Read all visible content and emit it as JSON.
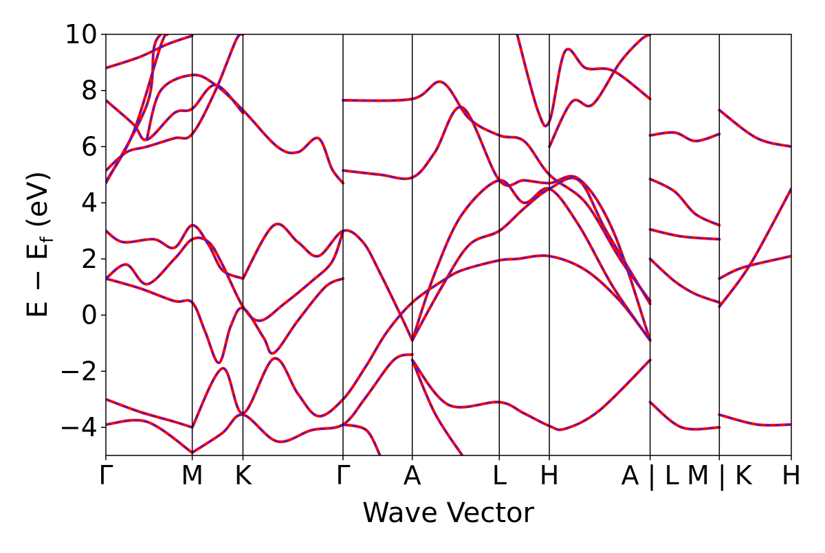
{
  "chart_data": {
    "type": "line",
    "title": "",
    "xlabel": "Wave Vector",
    "ylabel": "E − E_f (eV)",
    "ylabel_parts": {
      "main": "E − E",
      "sub": "f",
      "unit": " (eV)"
    },
    "ylim": [
      -5,
      10
    ],
    "yticks": [
      -4,
      -2,
      0,
      2,
      4,
      6,
      8,
      10
    ],
    "ytick_labels": [
      "−4",
      "−2",
      "0",
      "2",
      "4",
      "6",
      "8",
      "10"
    ],
    "grid": false,
    "legend": "none",
    "xlim": [
      0,
      10
    ],
    "kpath_ticks": [
      {
        "label": "Γ",
        "x": 0
      },
      {
        "label": "M",
        "x": 1.26
      },
      {
        "label": "K",
        "x": 2.0
      },
      {
        "label": "Γ",
        "x": 3.46
      },
      {
        "label": "A",
        "x": 4.47
      },
      {
        "label": "L",
        "x": 5.74
      },
      {
        "label": "H",
        "x": 6.47
      },
      {
        "label": "A | L",
        "x": 7.94
      },
      {
        "label": "M | K",
        "x": 8.95
      },
      {
        "label": "H",
        "x": 10.0
      }
    ],
    "series": [
      {
        "style": {
          "color": "#ff0000",
          "width": 4,
          "dash": "none"
        },
        "bands": [
          [
            [
              0,
              8.8
            ],
            [
              0.5,
              9.2
            ],
            [
              0.9,
              9.65
            ],
            [
              1.26,
              9.95
            ]
          ],
          [
            [
              0,
              7.65
            ],
            [
              0.4,
              6.8
            ],
            [
              0.6,
              6.25
            ],
            [
              1.0,
              7.2
            ],
            [
              1.26,
              7.35
            ],
            [
              1.6,
              8.2
            ],
            [
              2.0,
              7.2
            ]
          ],
          [
            [
              0,
              5.15
            ],
            [
              0.3,
              5.8
            ],
            [
              0.6,
              6.0
            ],
            [
              1.0,
              6.3
            ],
            [
              1.26,
              6.45
            ],
            [
              1.6,
              8.0
            ],
            [
              1.9,
              9.8
            ],
            [
              2.0,
              10.0
            ]
          ],
          [
            [
              0,
              4.75
            ],
            [
              0.4,
              6.5
            ],
            [
              0.8,
              9.6
            ],
            [
              0.9,
              10.0
            ]
          ],
          [
            [
              0,
              4.7
            ],
            [
              0.6,
              7.5
            ],
            [
              0.7,
              9.5
            ],
            [
              0.8,
              10.0
            ]
          ],
          [
            [
              0.6,
              6.3
            ],
            [
              0.8,
              8.0
            ],
            [
              1.26,
              8.55
            ],
            [
              1.6,
              8.2
            ],
            [
              2.0,
              7.3
            ],
            [
              2.5,
              6.0
            ],
            [
              2.8,
              5.8
            ],
            [
              3.1,
              6.3
            ],
            [
              3.3,
              5.2
            ],
            [
              3.46,
              4.7
            ]
          ],
          [
            [
              0,
              3.0
            ],
            [
              0.25,
              2.6
            ],
            [
              0.7,
              2.7
            ],
            [
              1.0,
              2.4
            ],
            [
              1.26,
              3.2
            ],
            [
              1.5,
              2.5
            ],
            [
              1.7,
              1.6
            ],
            [
              2.0,
              1.3
            ]
          ],
          [
            [
              0,
              1.3
            ],
            [
              0.3,
              1.8
            ],
            [
              0.6,
              1.1
            ],
            [
              1.0,
              2.0
            ],
            [
              1.26,
              2.7
            ],
            [
              1.5,
              2.6
            ],
            [
              1.7,
              1.8
            ],
            [
              2.0,
              0.3
            ],
            [
              2.25,
              -0.2
            ],
            [
              2.6,
              0.4
            ],
            [
              3.0,
              1.2
            ],
            [
              3.3,
              1.9
            ],
            [
              3.46,
              3.0
            ]
          ],
          [
            [
              0,
              1.3
            ],
            [
              0.5,
              0.95
            ],
            [
              1.0,
              0.5
            ],
            [
              1.26,
              0.45
            ],
            [
              1.45,
              -0.6
            ],
            [
              1.65,
              -1.7
            ],
            [
              1.82,
              -0.4
            ],
            [
              2.0,
              0.25
            ],
            [
              2.3,
              -0.8
            ],
            [
              2.45,
              -1.35
            ],
            [
              2.8,
              -0.2
            ],
            [
              3.2,
              1.0
            ],
            [
              3.46,
              1.3
            ]
          ],
          [
            [
              2.0,
              1.3
            ],
            [
              2.45,
              3.2
            ],
            [
              2.8,
              2.6
            ],
            [
              3.1,
              2.1
            ],
            [
              3.46,
              3.0
            ],
            [
              3.75,
              2.6
            ],
            [
              4.0,
              1.5
            ],
            [
              4.3,
              0.0
            ],
            [
              4.47,
              -0.9
            ]
          ],
          [
            [
              1.26,
              -4.0
            ],
            [
              1.7,
              -1.9
            ],
            [
              2.0,
              -3.5
            ],
            [
              2.45,
              -1.55
            ],
            [
              2.8,
              -2.8
            ],
            [
              3.1,
              -3.6
            ],
            [
              3.46,
              -3.0
            ],
            [
              3.8,
              -1.8
            ],
            [
              4.1,
              -0.6
            ],
            [
              4.47,
              0.45
            ],
            [
              4.9,
              1.2
            ],
            [
              5.2,
              1.6
            ],
            [
              5.74,
              1.95
            ],
            [
              6.0,
              2.0
            ],
            [
              6.47,
              2.1
            ],
            [
              7.0,
              1.6
            ],
            [
              7.5,
              0.5
            ],
            [
              7.94,
              -0.9
            ]
          ],
          [
            [
              0,
              -3.0
            ],
            [
              0.5,
              -3.45
            ],
            [
              1.0,
              -3.8
            ],
            [
              1.26,
              -4.0
            ]
          ],
          [
            [
              0,
              -3.9
            ],
            [
              0.6,
              -3.8
            ],
            [
              1.26,
              -4.9
            ]
          ],
          [
            [
              1.26,
              -4.9
            ],
            [
              1.7,
              -4.2
            ],
            [
              2.0,
              -3.55
            ],
            [
              2.5,
              -4.5
            ],
            [
              3.0,
              -4.1
            ],
            [
              3.46,
              -3.9
            ],
            [
              3.8,
              -2.9
            ],
            [
              4.2,
              -1.6
            ],
            [
              4.47,
              -1.4
            ]
          ],
          [
            [
              3.46,
              -3.9
            ],
            [
              3.8,
              -4.1
            ],
            [
              4.0,
              -5.0
            ]
          ],
          [
            [
              3.46,
              5.15
            ],
            [
              4.0,
              5.0
            ],
            [
              4.47,
              4.9
            ],
            [
              4.8,
              5.8
            ],
            [
              5.2,
              7.4
            ],
            [
              5.74,
              4.8
            ],
            [
              6.1,
              4.8
            ],
            [
              6.47,
              4.7
            ],
            [
              6.9,
              4.85
            ],
            [
              7.4,
              3.0
            ],
            [
              7.94,
              -0.9
            ]
          ],
          [
            [
              3.46,
              7.65
            ],
            [
              4.47,
              7.7
            ],
            [
              4.9,
              8.3
            ],
            [
              5.3,
              7.0
            ],
            [
              5.74,
              6.4
            ],
            [
              6.1,
              6.2
            ],
            [
              6.47,
              5.0
            ],
            [
              7.0,
              4.0
            ],
            [
              7.5,
              2.0
            ],
            [
              7.94,
              0.5
            ]
          ],
          [
            [
              4.47,
              -0.9
            ],
            [
              4.8,
              1.5
            ],
            [
              5.2,
              3.6
            ],
            [
              5.74,
              4.8
            ],
            [
              6.1,
              4.0
            ],
            [
              6.47,
              4.5
            ],
            [
              6.9,
              3.2
            ],
            [
              7.4,
              1.0
            ],
            [
              7.94,
              -0.9
            ]
          ],
          [
            [
              4.47,
              -0.9
            ],
            [
              4.9,
              1.0
            ],
            [
              5.3,
              2.5
            ],
            [
              5.74,
              3.0
            ],
            [
              6.1,
              3.8
            ],
            [
              6.47,
              4.5
            ],
            [
              6.9,
              4.8
            ],
            [
              7.3,
              3.0
            ],
            [
              7.94,
              0.4
            ]
          ],
          [
            [
              4.47,
              -1.6
            ],
            [
              5.0,
              -3.2
            ],
            [
              5.74,
              -3.1
            ],
            [
              6.1,
              -3.5
            ],
            [
              6.47,
              -3.95
            ],
            [
              6.7,
              -4.05
            ],
            [
              7.2,
              -3.4
            ],
            [
              7.94,
              -1.6
            ]
          ],
          [
            [
              4.47,
              -1.6
            ],
            [
              4.8,
              -3.5
            ],
            [
              5.2,
              -5.0
            ]
          ],
          [
            [
              6.47,
              6.0
            ],
            [
              6.8,
              7.6
            ],
            [
              7.1,
              7.5
            ],
            [
              7.5,
              9.0
            ],
            [
              7.8,
              9.8
            ],
            [
              7.94,
              10.0
            ]
          ],
          [
            [
              6.0,
              10.0
            ],
            [
              6.3,
              7.3
            ],
            [
              6.47,
              6.9
            ],
            [
              6.7,
              9.4
            ],
            [
              7.0,
              8.8
            ],
            [
              7.4,
              8.7
            ],
            [
              7.94,
              7.7
            ]
          ],
          [
            [
              7.94,
              6.4
            ],
            [
              8.3,
              6.5
            ],
            [
              8.6,
              6.2
            ],
            [
              8.95,
              6.45
            ]
          ],
          [
            [
              7.94,
              4.85
            ],
            [
              8.3,
              4.4
            ],
            [
              8.6,
              3.6
            ],
            [
              8.95,
              3.2
            ]
          ],
          [
            [
              7.94,
              3.05
            ],
            [
              8.4,
              2.8
            ],
            [
              8.95,
              2.7
            ]
          ],
          [
            [
              7.94,
              2.0
            ],
            [
              8.3,
              1.2
            ],
            [
              8.6,
              0.75
            ],
            [
              8.95,
              0.45
            ]
          ],
          [
            [
              7.94,
              -3.1
            ],
            [
              8.4,
              -4.0
            ],
            [
              8.95,
              -4.0
            ]
          ],
          [
            [
              8.95,
              1.3
            ],
            [
              9.3,
              1.7
            ],
            [
              10.0,
              2.1
            ]
          ],
          [
            [
              8.95,
              0.3
            ],
            [
              9.4,
              1.8
            ],
            [
              10.0,
              4.5
            ]
          ],
          [
            [
              8.95,
              -3.55
            ],
            [
              9.5,
              -3.9
            ],
            [
              10.0,
              -3.9
            ]
          ],
          [
            [
              8.95,
              7.3
            ],
            [
              9.5,
              6.3
            ],
            [
              10.0,
              6.0
            ]
          ]
        ]
      },
      {
        "style": {
          "color": "#2020ff",
          "width": 2,
          "dash": "6,8"
        }
      }
    ]
  }
}
